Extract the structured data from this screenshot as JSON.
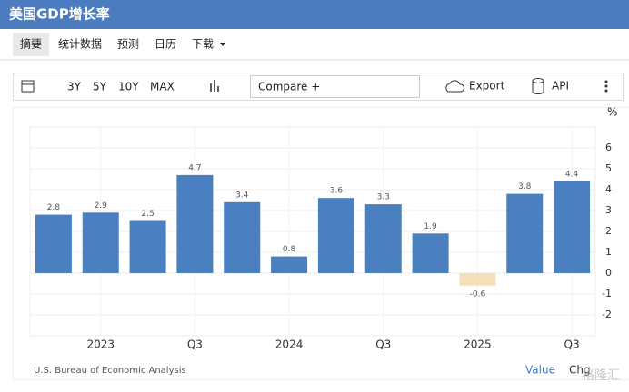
{
  "header": {
    "title": "美国GDP增长率"
  },
  "tabs": [
    "摘要",
    "统计数据",
    "预测",
    "日历",
    "下载"
  ],
  "toolbar": {
    "ranges": [
      "3Y",
      "5Y",
      "10Y",
      "MAX"
    ],
    "compare_placeholder": "Compare +",
    "export": "Export",
    "api": "API"
  },
  "chart_data": {
    "type": "bar",
    "y_unit": "%",
    "categories": [
      null,
      "2023",
      null,
      "Q3",
      null,
      "2024",
      null,
      "Q3",
      null,
      "2025",
      null,
      "Q3"
    ],
    "values": [
      2.8,
      2.9,
      2.5,
      4.7,
      3.4,
      0.8,
      3.6,
      3.3,
      1.9,
      -0.6,
      3.8,
      4.4
    ],
    "color": "#4a7fc1",
    "negative_color": "#f5dfb8",
    "ylim": [
      -3,
      7
    ],
    "yticks": [
      -2,
      -1,
      0,
      1,
      2,
      3,
      4,
      5,
      6
    ],
    "grid": true
  },
  "footer": {
    "source": "U.S. Bureau of Economic Analysis",
    "links": [
      "Value",
      "Chg"
    ],
    "watermark": "格隆汇"
  }
}
